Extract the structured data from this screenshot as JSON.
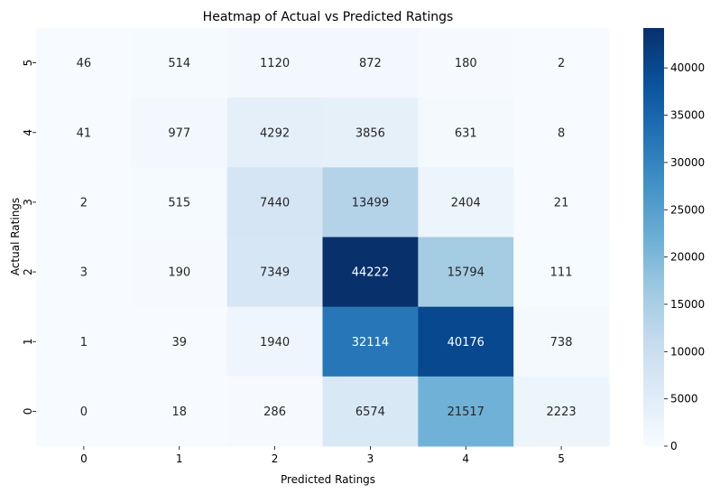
{
  "chart_data": {
    "type": "heatmap",
    "title": "Heatmap of Actual vs Predicted Ratings",
    "xlabel": "Predicted Ratings",
    "ylabel": "Actual Ratings",
    "x_categories": [
      "0",
      "1",
      "2",
      "3",
      "4",
      "5"
    ],
    "y_categories_top_to_bottom": [
      "5",
      "4",
      "3",
      "2",
      "1",
      "0"
    ],
    "values_top_to_bottom": [
      [
        46,
        514,
        1120,
        872,
        180,
        2
      ],
      [
        41,
        977,
        4292,
        3856,
        631,
        8
      ],
      [
        2,
        515,
        7440,
        13499,
        2404,
        21
      ],
      [
        3,
        190,
        7349,
        44222,
        15794,
        111
      ],
      [
        1,
        39,
        1940,
        32114,
        40176,
        738
      ],
      [
        0,
        18,
        286,
        6574,
        21517,
        2223
      ]
    ],
    "colormap": "Blues",
    "colorbar": {
      "min": 0,
      "max": 44222,
      "ticks": [
        0,
        5000,
        10000,
        15000,
        20000,
        25000,
        30000,
        35000,
        40000
      ]
    },
    "grid": false
  }
}
